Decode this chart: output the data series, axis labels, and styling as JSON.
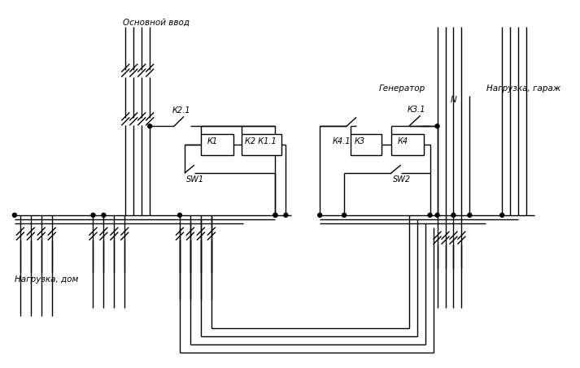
{
  "bg_color": "#ffffff",
  "line_color": "#000000",
  "text_color": "#000000",
  "labels": {
    "osnovnoy_vvod": "Основной ввод",
    "generator": "Генератор",
    "nagruzka_garazh": "Нагрузка, гараж",
    "nagruzka_dom": "Нагрузка, дом",
    "K21": "К2.1",
    "K1": "К1",
    "K2K11": "К2 К1.1",
    "SW1": "SW1",
    "K31": "К3.1",
    "K41": "К4.1",
    "K3": "К3",
    "K4": "К4",
    "SW2": "SW2",
    "N": "N"
  },
  "font_size": 7.5,
  "lw": 1.0
}
